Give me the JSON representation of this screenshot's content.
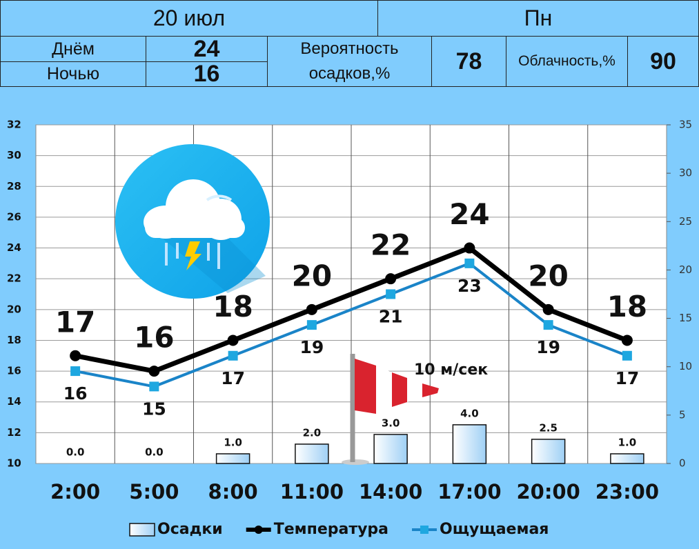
{
  "header": {
    "date": "20 июл",
    "weekday": "Пн",
    "day_label": "Днём",
    "night_label": "Ночью",
    "day_temp": 24,
    "night_temp": 16,
    "precip_prob_label": "Вероятность осадков,%",
    "precip_prob": 78,
    "cloud_label": "Облачность,%",
    "cloudiness": 90
  },
  "chart_data": {
    "type": "combo",
    "categories": [
      "2:00",
      "5:00",
      "8:00",
      "11:00",
      "14:00",
      "17:00",
      "20:00",
      "23:00"
    ],
    "series": [
      {
        "name": "Осадки",
        "type": "bar",
        "axis": "y2",
        "color": "#9fd0f5",
        "values": [
          0,
          0,
          1,
          2,
          3,
          4,
          2.5,
          1
        ],
        "value_labels": [
          "0.0",
          "0.0",
          "1.0",
          "2.0",
          "3.0",
          "4.0",
          "2.5",
          "1.0"
        ]
      },
      {
        "name": "Температура",
        "type": "line",
        "color": "#000000",
        "values": [
          17,
          16,
          18,
          20,
          22,
          24,
          20,
          18
        ]
      },
      {
        "name": "Ощущаемая",
        "type": "line",
        "color": "#1a84c8",
        "marker_color": "#1ea7e0",
        "values": [
          16,
          15,
          17,
          19,
          21,
          23,
          19,
          17
        ]
      }
    ],
    "annotation": "10 м/сек",
    "ylim": [
      10,
      32
    ],
    "yticks": [
      10,
      12,
      14,
      16,
      18,
      20,
      22,
      24,
      26,
      28,
      30,
      32
    ],
    "y2lim": [
      0,
      35
    ],
    "y2ticks": [
      0,
      5,
      10,
      15,
      20,
      25,
      30,
      35
    ],
    "grid": true
  }
}
